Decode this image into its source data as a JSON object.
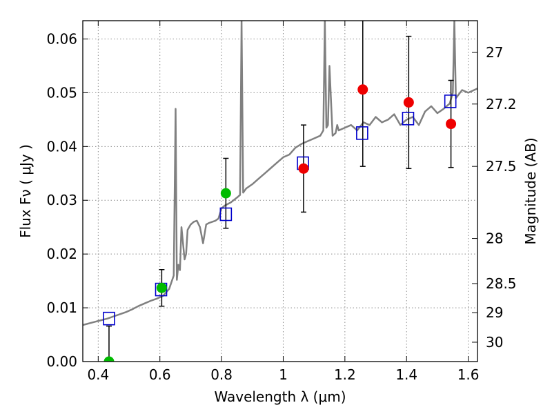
{
  "chart_data": {
    "type": "scatter",
    "xlabel": "Wavelength  λ (μm)",
    "ylabel": "Flux  Fν  ( μJy )",
    "y2label": "Magnitude (AB)",
    "xlim": [
      0.35,
      1.63
    ],
    "ylim": [
      0.0,
      0.0634
    ],
    "grid": true,
    "x_ticks": [
      0.4,
      0.6,
      0.8,
      1.0,
      1.2,
      1.4,
      1.6
    ],
    "x_tick_labels": [
      "0.4",
      "0.6",
      "0.8",
      "1",
      "1.2",
      "1.4",
      "1.6"
    ],
    "y_ticks": [
      0.0,
      0.01,
      0.02,
      0.03,
      0.04,
      0.05,
      0.06
    ],
    "y_tick_labels": [
      "0.00",
      "0.01",
      "0.02",
      "0.03",
      "0.04",
      "0.05",
      "0.06"
    ],
    "y2_ticks": [
      {
        "label": "27",
        "flux": 0.0575
      },
      {
        "label": "27.2",
        "flux": 0.0479
      },
      {
        "label": "27.5",
        "flux": 0.0363
      },
      {
        "label": "28",
        "flux": 0.0229
      },
      {
        "label": "28.5",
        "flux": 0.0145
      },
      {
        "label": "29",
        "flux": 0.0091
      },
      {
        "label": "30",
        "flux": 0.0036
      }
    ],
    "colors": {
      "template": "#808080",
      "model_marker": "#0000cc",
      "hst_points": "#00bb00",
      "ir_points": "#ee0000",
      "errorbar": "#000000",
      "grid": "#888888"
    },
    "series": [
      {
        "kind": "template_spectrum",
        "x": [
          0.35,
          0.37,
          0.39,
          0.41,
          0.43,
          0.45,
          0.47,
          0.49,
          0.51,
          0.53,
          0.55,
          0.57,
          0.59,
          0.61,
          0.63,
          0.645,
          0.651,
          0.655,
          0.66,
          0.665,
          0.67,
          0.68,
          0.685,
          0.69,
          0.7,
          0.71,
          0.72,
          0.73,
          0.74,
          0.75,
          0.76,
          0.77,
          0.78,
          0.79,
          0.8,
          0.81,
          0.83,
          0.85,
          0.86,
          0.865,
          0.87,
          0.875,
          0.88,
          0.9,
          0.92,
          0.94,
          0.96,
          0.98,
          1.0,
          1.02,
          1.04,
          1.06,
          1.08,
          1.1,
          1.12,
          1.13,
          1.135,
          1.14,
          1.145,
          1.15,
          1.16,
          1.17,
          1.175,
          1.18,
          1.2,
          1.22,
          1.24,
          1.26,
          1.28,
          1.3,
          1.32,
          1.34,
          1.36,
          1.38,
          1.4,
          1.42,
          1.44,
          1.46,
          1.48,
          1.5,
          1.52,
          1.54,
          1.55,
          1.555,
          1.56,
          1.58,
          1.6,
          1.63
        ],
        "y": [
          0.0068,
          0.0071,
          0.0074,
          0.0077,
          0.008,
          0.0084,
          0.0088,
          0.0092,
          0.0097,
          0.0103,
          0.0108,
          0.0113,
          0.0117,
          0.0122,
          0.0135,
          0.016,
          0.047,
          0.0152,
          0.018,
          0.017,
          0.025,
          0.019,
          0.02,
          0.0245,
          0.0255,
          0.026,
          0.0262,
          0.025,
          0.022,
          0.0255,
          0.0258,
          0.026,
          0.0262,
          0.0266,
          0.0285,
          0.029,
          0.0296,
          0.0305,
          0.031,
          0.0634,
          0.0314,
          0.0318,
          0.0322,
          0.033,
          0.034,
          0.035,
          0.036,
          0.037,
          0.038,
          0.0385,
          0.0398,
          0.0405,
          0.041,
          0.0415,
          0.042,
          0.043,
          0.0634,
          0.0435,
          0.044,
          0.055,
          0.042,
          0.0425,
          0.044,
          0.043,
          0.0435,
          0.044,
          0.043,
          0.0445,
          0.044,
          0.0455,
          0.0445,
          0.045,
          0.046,
          0.044,
          0.045,
          0.0455,
          0.044,
          0.0465,
          0.0475,
          0.0462,
          0.047,
          0.048,
          0.05,
          0.0634,
          0.049,
          0.0505,
          0.05,
          0.0508
        ]
      },
      {
        "kind": "model_band_flux",
        "marker": "open-square",
        "x": [
          0.435,
          0.604,
          0.814,
          1.064,
          1.256,
          1.405,
          1.542
        ],
        "y": [
          0.008,
          0.0134,
          0.0274,
          0.0369,
          0.0425,
          0.0452,
          0.0484
        ]
      },
      {
        "kind": "hst_detections",
        "marker": "filled-circle",
        "x": [
          0.435,
          0.606,
          0.814
        ],
        "y": [
          0.0,
          0.0137,
          0.0313
        ],
        "yerr": [
          0.0066,
          0.0034,
          0.0065
        ]
      },
      {
        "kind": "ir_detections",
        "marker": "filled-circle",
        "x": [
          1.066,
          1.258,
          1.407,
          1.544
        ],
        "y": [
          0.0359,
          0.0506,
          0.0482,
          0.0442
        ],
        "yerr": [
          0.0081,
          0.0143,
          0.0123,
          0.0081
        ]
      }
    ]
  }
}
